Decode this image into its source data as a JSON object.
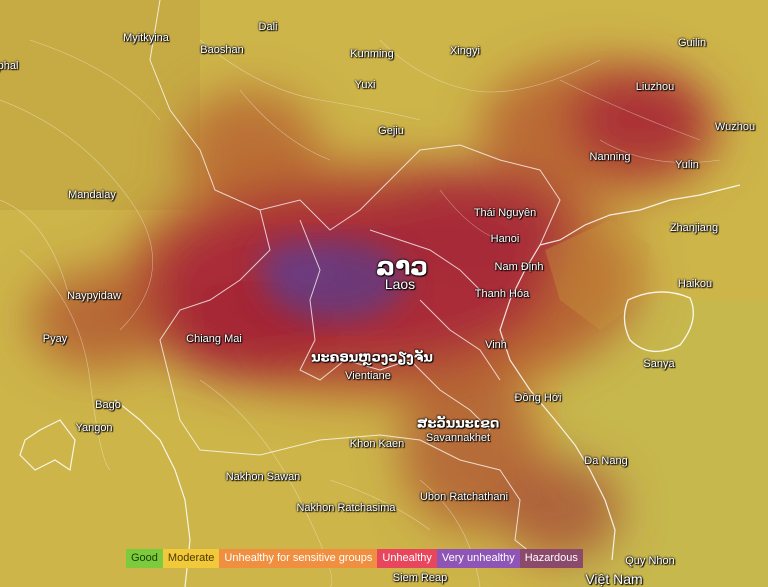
{
  "map": {
    "country_name_native": "ລາວ",
    "country_name_en": "Laos",
    "capital_native": "ນະຄອນຫຼວງວຽງຈັນ",
    "capital_en": "Vientiane",
    "province_native": "ສະວັນນະເຂດ",
    "province_en": "Savannakhet",
    "cities": [
      {
        "name": "Myitkyina"
      },
      {
        "name": "Baoshan"
      },
      {
        "name": "Dali"
      },
      {
        "name": "Kunming"
      },
      {
        "name": "Xingyi"
      },
      {
        "name": "Guilin"
      },
      {
        "name": "Yuxi"
      },
      {
        "name": "Liuzhou"
      },
      {
        "name": "Gejiu"
      },
      {
        "name": "Wuzhou"
      },
      {
        "name": "Nanning"
      },
      {
        "name": "Yulin"
      },
      {
        "name": "Mandalay"
      },
      {
        "name": "Thái Nguyên"
      },
      {
        "name": "Hanoi"
      },
      {
        "name": "Zhanjiang"
      },
      {
        "name": "Nam Định"
      },
      {
        "name": "Naypyidaw"
      },
      {
        "name": "Haikou"
      },
      {
        "name": "Thanh Hóa"
      },
      {
        "name": "Pyay"
      },
      {
        "name": "Chiang Mai"
      },
      {
        "name": "Sanya"
      },
      {
        "name": "Vinh"
      },
      {
        "name": "Bago"
      },
      {
        "name": "Đồng Hới"
      },
      {
        "name": "Yangon"
      },
      {
        "name": "Khon Kaen"
      },
      {
        "name": "Da Nang"
      },
      {
        "name": "Nakhon Sawan"
      },
      {
        "name": "Ubon Ratchathani"
      },
      {
        "name": "Nakhon Ratchasima"
      },
      {
        "name": "Quy Nhon"
      },
      {
        "name": "Siem Reap"
      },
      {
        "name": "Việt Nam"
      },
      {
        "name": "phal"
      }
    ]
  },
  "legend": {
    "good": "Good",
    "moderate": "Moderate",
    "usg": "Unhealthy for sensitive groups",
    "unhealthy": "Unhealthy",
    "very_unhealthy": "Very unhealthy",
    "hazardous": "Hazardous"
  },
  "colors": {
    "good": "#7ccb3c",
    "moderate": "#f2c93a",
    "usg": "#f08f3f",
    "unhealthy": "#e8465d",
    "very_unhealthy": "#8e55b7",
    "hazardous": "#8b4a6c"
  }
}
